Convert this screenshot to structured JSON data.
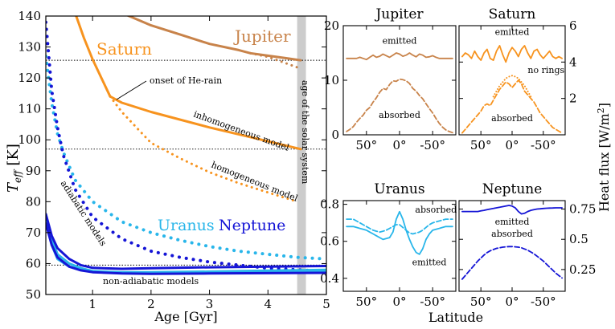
{
  "colors": {
    "jupiter": "#c8834a",
    "saturn": "#f7931e",
    "uranus": "#29b6ea",
    "neptune": "#1515d6",
    "solar_band": "#cccccc"
  },
  "chart_data": [
    {
      "type": "line",
      "panel": "main",
      "xlabel": "Age [Gyr]",
      "ylabel": "T",
      "ylabel_sub": "eff",
      "ylabel_unit": " [K]",
      "xlim": [
        0.2,
        5.0
      ],
      "ylim": [
        50,
        140
      ],
      "xticks": [
        1,
        2,
        3,
        4,
        5
      ],
      "yticks": [
        50,
        60,
        70,
        80,
        90,
        100,
        110,
        120,
        130,
        140
      ],
      "hlines": [
        125.7,
        97,
        59.5
      ],
      "solar_band": [
        4.5,
        4.65
      ],
      "series": [
        {
          "name": "Jupiter",
          "style": "solid",
          "width": 3,
          "color_key": "jupiter",
          "x": [
            1.5,
            2,
            2.5,
            3,
            3.5,
            3.7,
            4,
            4.3,
            4.56
          ],
          "y": [
            141,
            137,
            134,
            131,
            129,
            128,
            127.2,
            126.4,
            125.7
          ]
        },
        {
          "name": "Jupiter",
          "style": "dotted",
          "width": 3,
          "color_key": "jupiter",
          "x": [
            3.7,
            4,
            4.3,
            4.56
          ],
          "y": [
            128,
            126.8,
            124.8,
            123
          ]
        },
        {
          "name": "Saturn",
          "style": "solid",
          "width": 3,
          "color_key": "saturn",
          "x": [
            0.7,
            0.85,
            1,
            1.15,
            1.3,
            1.5,
            2,
            3,
            4,
            4.56
          ],
          "y": [
            141,
            133,
            126,
            120,
            114,
            112,
            109,
            104,
            99.5,
            97
          ]
        },
        {
          "name": "Saturn",
          "style": "dotted",
          "width": 3,
          "color_key": "saturn",
          "x": [
            1.3,
            1.5,
            1.8,
            2,
            2.5,
            3,
            3.5,
            4,
            4.5
          ],
          "y": [
            114,
            109,
            103,
            99,
            94,
            89.5,
            86,
            83,
            80
          ]
        },
        {
          "name": "Uranus",
          "style": "dotted",
          "width": 4,
          "color_key": "uranus",
          "x": [
            0.2,
            0.3,
            0.4,
            0.5,
            0.7,
            1,
            1.5,
            2,
            2.5,
            3,
            3.5,
            4,
            4.5,
            5
          ],
          "y": [
            127,
            112,
            102,
            96,
            87,
            80,
            73.5,
            70,
            67.5,
            65.5,
            64,
            63,
            62,
            61.5
          ]
        },
        {
          "name": "Neptune",
          "style": "dotted",
          "width": 4,
          "color_key": "neptune",
          "x": [
            0.2,
            0.3,
            0.4,
            0.5,
            0.7,
            1,
            1.5,
            2,
            2.5,
            3,
            3.5,
            4,
            4.5,
            5
          ],
          "y": [
            138,
            116,
            104,
            95,
            84,
            75,
            68,
            64,
            62,
            60.5,
            59.5,
            58.5,
            58,
            57.5
          ]
        },
        {
          "name": "Uranus",
          "style": "solid",
          "width": 3,
          "color_key": "uranus",
          "x": [
            0.2,
            0.3,
            0.4,
            0.6,
            0.8,
            1,
            1.5,
            2,
            3,
            4,
            5
          ],
          "y": [
            76,
            68,
            63,
            60,
            58.5,
            57.6,
            57,
            56.8,
            57,
            57.3,
            57.6
          ]
        },
        {
          "name": "Uranus",
          "style": "solid",
          "width": 3,
          "color_key": "uranus",
          "x": [
            0.2,
            0.3,
            0.4,
            0.6,
            0.8,
            1,
            1.5,
            2,
            3,
            4,
            5
          ],
          "y": [
            74,
            66,
            61.5,
            59,
            58,
            57.5,
            57.2,
            57.2,
            57.4,
            57.7,
            58
          ]
        },
        {
          "name": "Neptune",
          "style": "solid",
          "width": 3,
          "color_key": "neptune",
          "x": [
            0.2,
            0.3,
            0.4,
            0.6,
            0.8,
            1,
            1.5,
            2,
            3,
            4,
            5
          ],
          "y": [
            76,
            69,
            65,
            61.5,
            59.5,
            58.6,
            58.3,
            58.5,
            58.8,
            59,
            59.2
          ]
        },
        {
          "name": "Neptune",
          "style": "solid",
          "width": 3,
          "color_key": "neptune",
          "x": [
            0.2,
            0.3,
            0.4,
            0.6,
            0.8,
            1,
            1.5,
            2,
            3,
            4,
            5
          ],
          "y": [
            73,
            66,
            62,
            59,
            57.8,
            57.2,
            56.8,
            56.7,
            56.8,
            56.9,
            57
          ]
        }
      ],
      "labels": {
        "jupiter": "Jupiter",
        "saturn": "Saturn",
        "uranus": "Uranus",
        "neptune": "Neptune",
        "he_rain": "onset of He-rain",
        "inhomogeneous": "inhomogeneous model",
        "homogeneous": "homogeneous model",
        "adiabatic": "adiabatic models",
        "non_adiabatic": "non-adiabatic models",
        "solar_age": "age of the solar system"
      }
    },
    {
      "type": "line",
      "panel": "Jupiter",
      "title": "Jupiter",
      "xticks": [
        "50°",
        "0°",
        "-50°"
      ],
      "yticks": [
        0,
        10,
        20
      ],
      "ylim": [
        0,
        20
      ],
      "x": [
        80,
        75,
        70,
        65,
        60,
        55,
        50,
        45,
        40,
        35,
        30,
        25,
        20,
        15,
        10,
        5,
        0,
        -5,
        -10,
        -15,
        -20,
        -25,
        -30,
        -35,
        -40,
        -45,
        -50,
        -55,
        -60,
        -65,
        -70,
        -75,
        -80
      ],
      "series": [
        {
          "name": "emitted",
          "style": "solid",
          "values": [
            14,
            14,
            14,
            14,
            14.2,
            14,
            13.8,
            14.2,
            14.6,
            14.2,
            14.4,
            14.8,
            14.5,
            14.2,
            14.6,
            15,
            14.8,
            14.4,
            14.6,
            15,
            14.6,
            14.3,
            14.8,
            14.6,
            14.2,
            14.3,
            14.5,
            14.2,
            14,
            14,
            14,
            14,
            14
          ]
        },
        {
          "name": "absorbed",
          "style": "dashed",
          "values": [
            0.6,
            1,
            1.5,
            2.3,
            3,
            3.6,
            4.5,
            5,
            6,
            6.8,
            7.8,
            8.5,
            8.3,
            9.2,
            9.9,
            9.8,
            10.2,
            10.1,
            9.9,
            9.4,
            8.5,
            8,
            7.2,
            6.6,
            5.7,
            4.8,
            4,
            3,
            2.1,
            1.4,
            0.9,
            0.6,
            0.4
          ]
        }
      ],
      "labels": {
        "emitted": "emitted",
        "absorbed": "absorbed"
      }
    },
    {
      "type": "line",
      "panel": "Saturn",
      "title": "Saturn",
      "xticks": [
        "50°",
        "0°",
        "-50°"
      ],
      "yticks": [
        2,
        4,
        6
      ],
      "ylim": [
        0,
        6
      ],
      "ylabel_right": "Heat flux [W/m",
      "ylabel_right_sup": "2",
      "ylabel_right_end": "]",
      "x": [
        80,
        75,
        70,
        65,
        60,
        55,
        50,
        45,
        40,
        35,
        30,
        25,
        20,
        15,
        10,
        5,
        0,
        -5,
        -10,
        -15,
        -20,
        -25,
        -30,
        -35,
        -40,
        -45,
        -50,
        -55,
        -60,
        -65,
        -70,
        -75,
        -80
      ],
      "series": [
        {
          "name": "emitted",
          "style": "solid",
          "values": [
            4.3,
            4.5,
            4.4,
            4.2,
            4.6,
            4.3,
            4.1,
            4.5,
            4.7,
            4.2,
            4.1,
            4.6,
            4.9,
            4.4,
            4.0,
            4.5,
            4.8,
            4.6,
            4.3,
            4.7,
            4.9,
            4.5,
            4.2,
            4.6,
            4.7,
            4.4,
            4.2,
            4.4,
            4.6,
            4.3,
            4.2,
            4.3,
            4.2
          ]
        },
        {
          "name": "absorbed",
          "style": "dashed",
          "values": [
            0.1,
            0.3,
            0.5,
            0.7,
            0.9,
            1.1,
            1.3,
            1.6,
            1.7,
            1.6,
            1.9,
            2.2,
            2.5,
            2.7,
            2.9,
            2.8,
            2.6,
            2.8,
            3.0,
            2.8,
            2.4,
            2.2,
            2.0,
            1.8,
            1.5,
            1.2,
            1.0,
            0.8,
            0.6,
            0.4,
            0.3,
            0.2,
            0.1
          ]
        },
        {
          "name": "no rings",
          "style": "dotted",
          "x": [
            30,
            25,
            20,
            15,
            10,
            5,
            0,
            -5,
            -10,
            -15,
            -20,
            -25,
            -30
          ],
          "values": [
            2.1,
            2.4,
            2.7,
            2.9,
            3.1,
            3.2,
            3.25,
            3.2,
            3.1,
            2.9,
            2.7,
            2.4,
            2.1
          ]
        }
      ],
      "labels": {
        "emitted": "emitted",
        "absorbed": "absorbed",
        "no_rings": "no rings"
      }
    },
    {
      "type": "line",
      "panel": "Uranus",
      "title": "Uranus",
      "xticks": [
        "50°",
        "0°",
        "-50°"
      ],
      "yticks": [
        0.4,
        0.6,
        0.8
      ],
      "ylim": [
        0.33,
        0.82
      ],
      "x": [
        80,
        75,
        70,
        65,
        60,
        55,
        50,
        45,
        40,
        35,
        30,
        25,
        20,
        15,
        10,
        5,
        0,
        -5,
        -10,
        -15,
        -20,
        -25,
        -30,
        -35,
        -40,
        -45,
        -50,
        -55,
        -60,
        -65,
        -70,
        -75,
        -80
      ],
      "series": [
        {
          "name": "emitted",
          "style": "solid",
          "values": [
            0.68,
            0.68,
            0.68,
            0.675,
            0.67,
            0.665,
            0.66,
            0.65,
            0.64,
            0.63,
            0.62,
            0.61,
            0.615,
            0.62,
            0.65,
            0.72,
            0.76,
            0.72,
            0.66,
            0.61,
            0.57,
            0.54,
            0.53,
            0.56,
            0.61,
            0.64,
            0.66,
            0.665,
            0.67,
            0.675,
            0.68,
            0.68,
            0.68
          ]
        },
        {
          "name": "absorbed",
          "style": "dashed",
          "values": [
            0.72,
            0.72,
            0.72,
            0.71,
            0.7,
            0.69,
            0.68,
            0.67,
            0.66,
            0.655,
            0.65,
            0.655,
            0.66,
            0.67,
            0.68,
            0.69,
            0.69,
            0.675,
            0.66,
            0.645,
            0.64,
            0.645,
            0.65,
            0.66,
            0.675,
            0.69,
            0.7,
            0.705,
            0.71,
            0.715,
            0.72,
            0.72,
            0.72
          ]
        }
      ],
      "labels": {
        "emitted": "emitted",
        "absorbed": "absorbed"
      }
    },
    {
      "type": "line",
      "panel": "Neptune",
      "title": "Neptune",
      "xticks": [
        "50°",
        "0°",
        "-50°"
      ],
      "yticks": [
        0.25,
        0.5,
        0.75
      ],
      "ylim": [
        0.07,
        0.82
      ],
      "x": [
        80,
        75,
        70,
        65,
        60,
        55,
        50,
        45,
        40,
        35,
        30,
        25,
        20,
        15,
        10,
        5,
        0,
        -5,
        -10,
        -15,
        -20,
        -25,
        -30,
        -35,
        -40,
        -45,
        -50,
        -55,
        -60,
        -65,
        -70,
        -75,
        -80
      ],
      "series": [
        {
          "name": "emitted",
          "style": "solid",
          "values": [
            0.73,
            0.73,
            0.73,
            0.73,
            0.73,
            0.73,
            0.735,
            0.74,
            0.745,
            0.75,
            0.755,
            0.76,
            0.765,
            0.77,
            0.775,
            0.78,
            0.775,
            0.76,
            0.73,
            0.71,
            0.715,
            0.73,
            0.74,
            0.745,
            0.75,
            0.752,
            0.755,
            0.757,
            0.758,
            0.759,
            0.76,
            0.76,
            0.76
          ]
        },
        {
          "name": "absorbed",
          "style": "dashed",
          "values": [
            0.17,
            0.2,
            0.23,
            0.26,
            0.29,
            0.32,
            0.345,
            0.37,
            0.39,
            0.405,
            0.415,
            0.425,
            0.43,
            0.435,
            0.438,
            0.44,
            0.44,
            0.438,
            0.435,
            0.43,
            0.42,
            0.41,
            0.395,
            0.38,
            0.36,
            0.34,
            0.32,
            0.295,
            0.27,
            0.245,
            0.22,
            0.2,
            0.18
          ]
        }
      ],
      "labels": {
        "emitted": "emitted",
        "absorbed": "absorbed"
      }
    }
  ],
  "shared": {
    "xlabel": "Latitude"
  }
}
